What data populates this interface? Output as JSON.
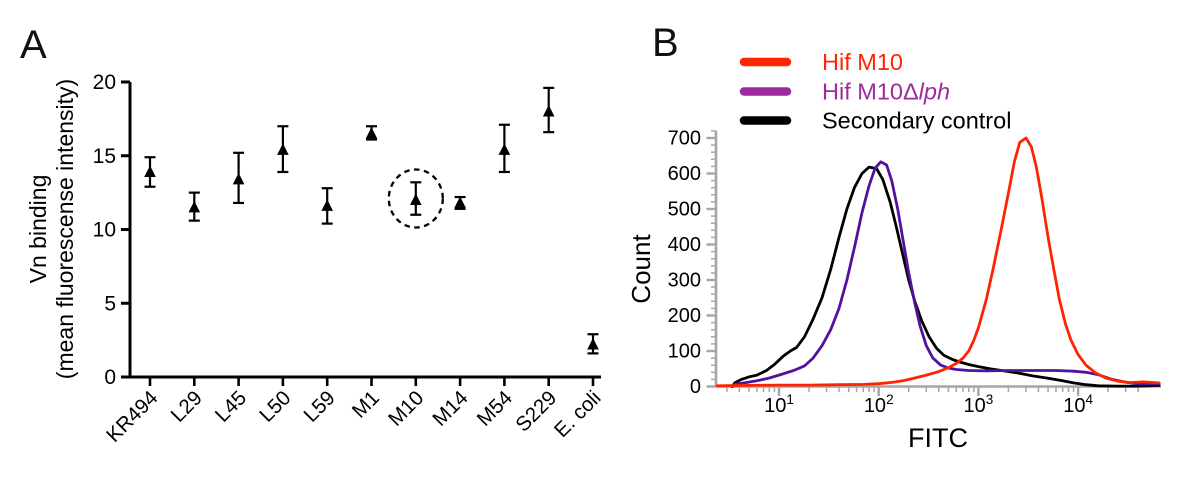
{
  "figure": {
    "panel_a": {
      "letter": "A",
      "y_label_line1": "Vn binding",
      "y_label_line2": "(mean fluorescense intensity)"
    },
    "panel_b": {
      "letter": "B",
      "y_label": "Count",
      "x_label": "FITC"
    }
  },
  "chart_data": [
    {
      "type": "scatter",
      "panel": "A",
      "title": "",
      "xlabel": "",
      "ylabel": "Vn binding (mean fluorescense intensity)",
      "marker": "filled-triangle-up",
      "color": "#000000",
      "ylim": [
        0,
        20
      ],
      "yticks": [
        0,
        5,
        10,
        15,
        20
      ],
      "grid": false,
      "categories": [
        "KR494",
        "L29",
        "L45",
        "L50",
        "L59",
        "M1",
        "M10",
        "M14",
        "M54",
        "S229",
        "E. coli"
      ],
      "italic_categories": [
        "E. coli"
      ],
      "values": [
        13.9,
        11.5,
        13.4,
        15.4,
        11.6,
        16.5,
        12.0,
        11.8,
        15.4,
        18.0,
        2.2
      ],
      "error_low": [
        12.9,
        10.6,
        11.8,
        13.9,
        10.4,
        16.1,
        11.0,
        11.4,
        13.9,
        16.6,
        1.6
      ],
      "error_high": [
        14.9,
        12.5,
        15.2,
        17.0,
        12.8,
        17.0,
        13.2,
        12.2,
        17.1,
        19.6,
        2.9
      ],
      "annotation": {
        "shape": "dashed-circle",
        "category": "M10"
      }
    },
    {
      "type": "line",
      "panel": "B",
      "title": "",
      "xlabel": "FITC",
      "ylabel": "Count",
      "x_scale": "log",
      "xlim": [
        2.4,
        65000
      ],
      "ylim": [
        0,
        720
      ],
      "yticks": [
        0,
        100,
        200,
        300,
        400,
        500,
        600,
        700
      ],
      "y_minor_step": 20,
      "x_major_ticks": [
        10,
        100,
        1000,
        10000
      ],
      "grid": false,
      "axis_color": "#a6a6a6",
      "legend_position": "top-left",
      "series": [
        {
          "name": "Hif M10",
          "color": "#ff2400",
          "legend_color": "#ff2400",
          "points": [
            [
              2.4,
              2
            ],
            [
              5,
              3
            ],
            [
              10,
              4
            ],
            [
              20,
              4
            ],
            [
              40,
              5
            ],
            [
              70,
              6
            ],
            [
              100,
              8
            ],
            [
              140,
              12
            ],
            [
              180,
              17
            ],
            [
              230,
              24
            ],
            [
              300,
              32
            ],
            [
              400,
              42
            ],
            [
              500,
              53
            ],
            [
              600,
              65
            ],
            [
              700,
              80
            ],
            [
              800,
              100
            ],
            [
              900,
              130
            ],
            [
              1000,
              165
            ],
            [
              1200,
              245
            ],
            [
              1400,
              330
            ],
            [
              1700,
              445
            ],
            [
              2000,
              545
            ],
            [
              2300,
              635
            ],
            [
              2600,
              688
            ],
            [
              3000,
              700
            ],
            [
              3400,
              675
            ],
            [
              3800,
              620
            ],
            [
              4300,
              535
            ],
            [
              5000,
              420
            ],
            [
              5700,
              330
            ],
            [
              6500,
              245
            ],
            [
              7500,
              175
            ],
            [
              8500,
              130
            ],
            [
              10000,
              90
            ],
            [
              12000,
              60
            ],
            [
              15000,
              38
            ],
            [
              19000,
              24
            ],
            [
              25000,
              15
            ],
            [
              33000,
              11
            ],
            [
              45000,
              13
            ],
            [
              65000,
              10
            ]
          ]
        },
        {
          "name": "Hif M10Δlph",
          "name_prefix": "Hif M10Δ",
          "name_italic": "lph",
          "color": "#53129b",
          "legend_color": "#9d2b9d",
          "points": [
            [
              3.4,
              0
            ],
            [
              3.6,
              6
            ],
            [
              4.5,
              10
            ],
            [
              6,
              16
            ],
            [
              8,
              24
            ],
            [
              10,
              32
            ],
            [
              14,
              45
            ],
            [
              18,
              58
            ],
            [
              22,
              80
            ],
            [
              27,
              115
            ],
            [
              33,
              160
            ],
            [
              40,
              220
            ],
            [
              48,
              300
            ],
            [
              58,
              400
            ],
            [
              68,
              490
            ],
            [
              80,
              565
            ],
            [
              92,
              615
            ],
            [
              105,
              633
            ],
            [
              120,
              624
            ],
            [
              135,
              580
            ],
            [
              155,
              500
            ],
            [
              175,
              415
            ],
            [
              200,
              320
            ],
            [
              230,
              235
            ],
            [
              260,
              170
            ],
            [
              300,
              115
            ],
            [
              350,
              80
            ],
            [
              420,
              60
            ],
            [
              500,
              52
            ],
            [
              600,
              48
            ],
            [
              800,
              45
            ],
            [
              1200,
              44
            ],
            [
              2000,
              45
            ],
            [
              3500,
              45
            ],
            [
              6000,
              45
            ],
            [
              9000,
              43
            ],
            [
              12000,
              40
            ],
            [
              16000,
              33
            ],
            [
              22000,
              20
            ],
            [
              30000,
              12
            ],
            [
              42000,
              7
            ],
            [
              65000,
              8
            ]
          ]
        },
        {
          "name": "Secondary control",
          "color": "#000000",
          "legend_color": "#000000",
          "points": [
            [
              3.4,
              0
            ],
            [
              3.6,
              10
            ],
            [
              4.2,
              20
            ],
            [
              5,
              27
            ],
            [
              6,
              32
            ],
            [
              7.5,
              45
            ],
            [
              9,
              62
            ],
            [
              11,
              85
            ],
            [
              13,
              100
            ],
            [
              15,
              110
            ],
            [
              18,
              140
            ],
            [
              22,
              190
            ],
            [
              27,
              250
            ],
            [
              33,
              330
            ],
            [
              40,
              420
            ],
            [
              48,
              500
            ],
            [
              57,
              560
            ],
            [
              68,
              600
            ],
            [
              80,
              618
            ],
            [
              95,
              614
            ],
            [
              110,
              583
            ],
            [
              130,
              520
            ],
            [
              150,
              450
            ],
            [
              175,
              370
            ],
            [
              200,
              300
            ],
            [
              230,
              240
            ],
            [
              270,
              185
            ],
            [
              320,
              140
            ],
            [
              380,
              108
            ],
            [
              450,
              88
            ],
            [
              550,
              76
            ],
            [
              650,
              69
            ],
            [
              800,
              62
            ],
            [
              1000,
              56
            ],
            [
              1300,
              50
            ],
            [
              1800,
              44
            ],
            [
              2500,
              38
            ],
            [
              3500,
              30
            ],
            [
              5000,
              23
            ],
            [
              7000,
              16
            ],
            [
              9000,
              10
            ],
            [
              12000,
              5
            ],
            [
              16000,
              2
            ],
            [
              25000,
              1
            ],
            [
              40000,
              1
            ],
            [
              65000,
              3
            ]
          ]
        }
      ]
    }
  ]
}
